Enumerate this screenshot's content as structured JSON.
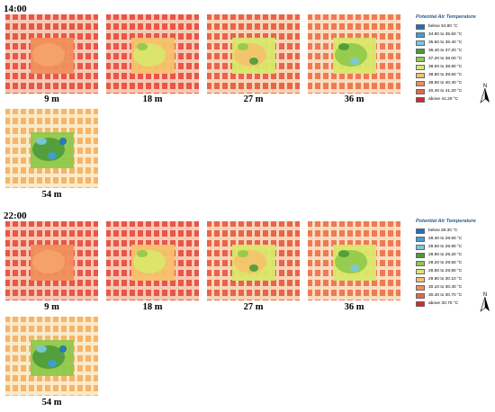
{
  "sections": [
    {
      "time": "14:00",
      "heights": [
        "9 m",
        "18 m",
        "27 m",
        "36 m",
        "54 m"
      ],
      "legend": {
        "title": "Potential Air Temperature",
        "items": [
          {
            "label": "below 34.80 °C",
            "color": "#1f6fbf"
          },
          {
            "label": "34.80 to 35.60 °C",
            "color": "#3f9fd8"
          },
          {
            "label": "35.60 to 36.40 °C",
            "color": "#7cc8e0"
          },
          {
            "label": "36.40 to 37.20 °C",
            "color": "#4a9a3a"
          },
          {
            "label": "37.20 to 38.00 °C",
            "color": "#8fc94a"
          },
          {
            "label": "38.00 to 38.80 °C",
            "color": "#d9e86a"
          },
          {
            "label": "38.80 to 39.60 °C",
            "color": "#f5c26b"
          },
          {
            "label": "39.60 to 40.40 °C",
            "color": "#f08f5a"
          },
          {
            "label": "40.40 to 41.20 °C",
            "color": "#e8634a"
          },
          {
            "label": "above 41.20 °C",
            "color": "#d9272e"
          }
        ]
      }
    },
    {
      "time": "22:00",
      "heights": [
        "9 m",
        "18 m",
        "27 m",
        "36 m",
        "54 m"
      ],
      "legend": {
        "title": "Potential Air Temperature",
        "items": [
          {
            "label": "below 28.30 °C",
            "color": "#1f6fbf"
          },
          {
            "label": "28.30 to 28.60 °C",
            "color": "#3f9fd8"
          },
          {
            "label": "28.60 to 28.90 °C",
            "color": "#7cc8e0"
          },
          {
            "label": "28.90 to 29.20 °C",
            "color": "#4a9a3a"
          },
          {
            "label": "29.20 to 29.50 °C",
            "color": "#8fc94a"
          },
          {
            "label": "29.50 to 29.80 °C",
            "color": "#d9e86a"
          },
          {
            "label": "29.80 to 30.10 °C",
            "color": "#f5c26b"
          },
          {
            "label": "30.10 to 30.40 °C",
            "color": "#f08f5a"
          },
          {
            "label": "30.40 to 30.70 °C",
            "color": "#e8634a"
          },
          {
            "label": "above 30.70 °C",
            "color": "#d9272e"
          }
        ]
      }
    }
  ],
  "north_label": "N"
}
